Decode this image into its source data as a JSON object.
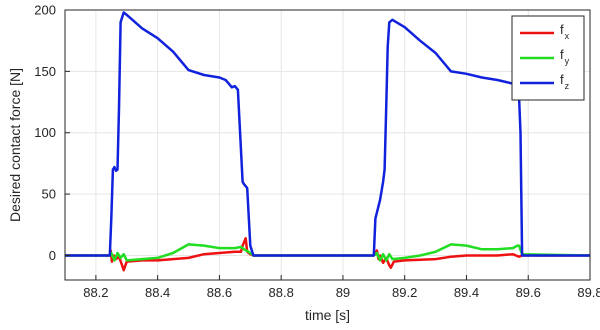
{
  "chart_data": {
    "type": "line",
    "title": "",
    "xlabel": "time [s]",
    "ylabel": "Desired contact force [N]",
    "xlim": [
      88.1,
      89.8
    ],
    "ylim": [
      -20,
      200
    ],
    "xticks": [
      "88.2",
      "88.4",
      "88.6",
      "88.8",
      "89",
      "89.2",
      "89.4",
      "89.6",
      "89.8"
    ],
    "yticks": [
      "0",
      "50",
      "100",
      "150",
      "200"
    ],
    "grid": true,
    "legend_position": "top-right",
    "series": [
      {
        "name": "f",
        "subscript": "x",
        "color": "#ee1111",
        "x": [
          88.1,
          88.245,
          88.248,
          88.252,
          88.258,
          88.265,
          88.275,
          88.285,
          88.29,
          88.3,
          88.35,
          88.4,
          88.45,
          88.5,
          88.55,
          88.6,
          88.65,
          88.67,
          88.675,
          88.685,
          88.69,
          88.7,
          88.71,
          89.1,
          89.11,
          89.115,
          89.12,
          89.13,
          89.14,
          89.15,
          89.155,
          89.165,
          89.2,
          89.3,
          89.35,
          89.4,
          89.5,
          89.55,
          89.56,
          89.57,
          89.58,
          89.8
        ],
        "y": [
          0,
          0,
          4,
          -5,
          0,
          -3,
          -1,
          -8,
          -12,
          -5,
          -4,
          -4,
          -3,
          -2,
          1,
          2,
          3,
          3,
          8,
          14,
          3,
          1,
          0,
          0,
          4,
          -3,
          0,
          -6,
          -2,
          -8,
          -10,
          -5,
          -4,
          -3,
          -1,
          0,
          0,
          1,
          0,
          -1,
          0,
          0
        ]
      },
      {
        "name": "f",
        "subscript": "y",
        "color": "#22dd22",
        "x": [
          88.1,
          88.245,
          88.25,
          88.26,
          88.27,
          88.28,
          88.29,
          88.3,
          88.35,
          88.4,
          88.45,
          88.5,
          88.55,
          88.6,
          88.65,
          88.67,
          88.68,
          88.7,
          88.71,
          89.1,
          89.11,
          89.12,
          89.13,
          89.14,
          89.15,
          89.16,
          89.2,
          89.25,
          89.3,
          89.35,
          89.4,
          89.45,
          89.5,
          89.55,
          89.565,
          89.57,
          89.58,
          89.8
        ],
        "y": [
          0,
          0,
          2,
          -4,
          2,
          -2,
          1,
          -4,
          -3,
          -2,
          2,
          9,
          8,
          6,
          6,
          7,
          5,
          2,
          0,
          0,
          2,
          -4,
          1,
          -4,
          1,
          -3,
          -2,
          0,
          3,
          9,
          8,
          5,
          5,
          6,
          8,
          8,
          1,
          0
        ]
      },
      {
        "name": "f",
        "subscript": "z",
        "color": "#1122dd",
        "x": [
          88.1,
          88.245,
          88.25,
          88.255,
          88.26,
          88.265,
          88.27,
          88.275,
          88.28,
          88.29,
          88.3,
          88.35,
          88.4,
          88.45,
          88.5,
          88.55,
          88.6,
          88.62,
          88.63,
          88.64,
          88.65,
          88.66,
          88.675,
          88.68,
          88.69,
          88.7,
          88.71,
          89.1,
          89.105,
          89.11,
          89.12,
          89.13,
          89.135,
          89.14,
          89.145,
          89.15,
          89.16,
          89.2,
          89.25,
          89.3,
          89.35,
          89.4,
          89.45,
          89.5,
          89.55,
          89.56,
          89.57,
          89.575,
          89.58,
          89.8
        ],
        "y": [
          0,
          0,
          30,
          70,
          72,
          69,
          70,
          120,
          190,
          198,
          196,
          185,
          177,
          166,
          151,
          147,
          145,
          143,
          140,
          137,
          138,
          135,
          60,
          58,
          55,
          8,
          0,
          0,
          30,
          35,
          45,
          60,
          70,
          120,
          170,
          190,
          192,
          186,
          175,
          165,
          150,
          148,
          145,
          143,
          140,
          138,
          130,
          100,
          0,
          0
        ]
      }
    ]
  }
}
